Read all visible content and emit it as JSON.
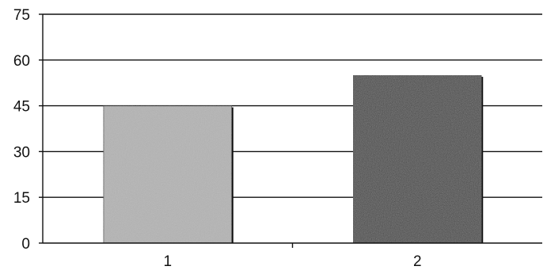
{
  "chart_data": {
    "type": "bar",
    "title": "",
    "xlabel": "",
    "ylabel": "",
    "categories": [
      "1",
      "2"
    ],
    "values": [
      45,
      55
    ],
    "ylim": [
      0,
      75
    ],
    "yticks": [
      0,
      15,
      30,
      45,
      60,
      75
    ],
    "ytick_labels": [
      "0",
      "15",
      "30",
      "45",
      "60",
      "75"
    ],
    "grid": true,
    "legend": "none",
    "colors": [
      "#b3b3b3",
      "#2e2e2e"
    ]
  }
}
